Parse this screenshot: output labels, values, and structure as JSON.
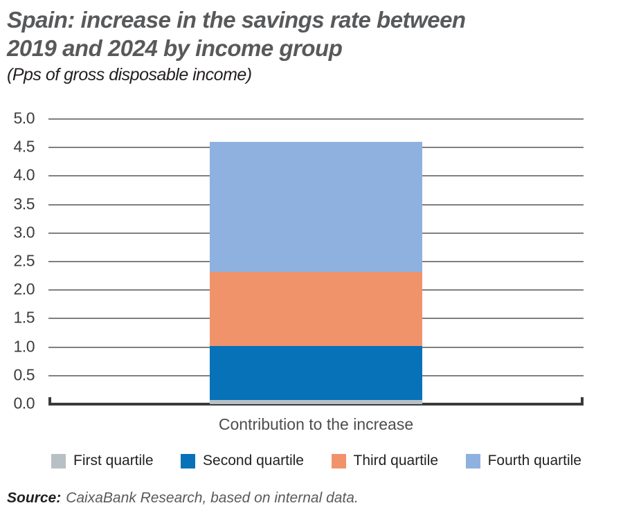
{
  "header": {
    "title_lines": [
      "Spain: increase in the savings rate between",
      "2019 and 2024 by income group"
    ],
    "subtitle": "(Pps of gross disposable income)"
  },
  "source": {
    "label": "Source:",
    "text": "CaixaBank Research, based on internal data."
  },
  "colors": {
    "title": "#58595B",
    "subtitle": "#231F20",
    "gridline": "#7F7F7F",
    "axis": "#3A3A3A",
    "first_quartile": "#B7C0C5",
    "second_quartile": "#0772B8",
    "third_quartile": "#F0936B",
    "fourth_quartile": "#8FB1DF"
  },
  "chart_data": {
    "type": "bar",
    "stacked": true,
    "title": "Spain: increase in the savings rate between 2019 and 2024 by income group",
    "subtitle": "(Pps of gross disposable income)",
    "categories": [
      "Contribution to the increase"
    ],
    "series": [
      {
        "name": "First quartile",
        "values": [
          0.07
        ],
        "color": "#B7C0C5"
      },
      {
        "name": "Second quartile",
        "values": [
          0.95
        ],
        "color": "#0772B8"
      },
      {
        "name": "Third quartile",
        "values": [
          1.3
        ],
        "color": "#F0936B"
      },
      {
        "name": "Fourth quartile",
        "values": [
          2.28
        ],
        "color": "#8FB1DF"
      }
    ],
    "stack_total": 4.6,
    "xlabel": "",
    "ylabel": "Pps of gross disposable income",
    "ylim": [
      0,
      5
    ],
    "ytick_step": 0.5,
    "yticks": [
      "5.0",
      "4.5",
      "4.0",
      "3.5",
      "3.0",
      "2.5",
      "2.0",
      "1.5",
      "1.0",
      "0.5",
      "0.0"
    ],
    "grid": true,
    "legend_position": "bottom"
  }
}
